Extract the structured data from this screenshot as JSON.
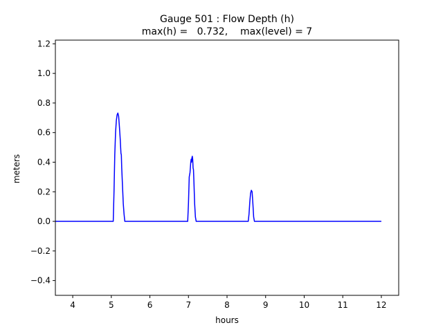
{
  "chart_data": {
    "type": "line",
    "title": "Gauge 501 : Flow Depth (h)",
    "subtitle": "max(h) =   0.732,    max(level) = 7",
    "xlabel": "hours",
    "ylabel": "meters",
    "xlim": [
      3.55,
      12.45
    ],
    "ylim": [
      -0.5,
      1.225
    ],
    "xticks": [
      4,
      5,
      6,
      7,
      8,
      9,
      10,
      11,
      12
    ],
    "yticks": [
      -0.4,
      -0.2,
      0.0,
      0.2,
      0.4,
      0.6,
      0.8,
      1.0,
      1.2
    ],
    "ytick_labels": [
      "−0.4",
      "−0.2",
      "0.0",
      "0.2",
      "0.4",
      "0.6",
      "0.8",
      "1.0",
      "1.2"
    ],
    "grid": false,
    "series": [
      {
        "color": "#0000ff",
        "x": [
          3.55,
          5.05,
          5.07,
          5.09,
          5.11,
          5.13,
          5.15,
          5.17,
          5.19,
          5.21,
          5.23,
          5.25,
          5.26,
          5.27,
          5.29,
          5.31,
          5.33,
          5.35,
          5.37,
          6.98,
          7.0,
          7.02,
          7.04,
          7.06,
          7.07,
          7.08,
          7.09,
          7.1,
          7.11,
          7.12,
          7.13,
          7.14,
          7.16,
          7.18,
          7.2,
          7.22,
          8.55,
          8.57,
          8.59,
          8.61,
          8.63,
          8.65,
          8.67,
          8.69,
          8.71,
          12.0
        ],
        "y": [
          0.0,
          0.0,
          0.2,
          0.45,
          0.6,
          0.68,
          0.72,
          0.732,
          0.71,
          0.64,
          0.56,
          0.46,
          0.45,
          0.36,
          0.24,
          0.12,
          0.05,
          0.0,
          0.0,
          0.0,
          0.12,
          0.3,
          0.33,
          0.4,
          0.42,
          0.4,
          0.43,
          0.44,
          0.42,
          0.36,
          0.35,
          0.28,
          0.12,
          0.03,
          0.0,
          0.0,
          0.0,
          0.05,
          0.13,
          0.19,
          0.21,
          0.2,
          0.12,
          0.03,
          0.0,
          0.0
        ]
      }
    ]
  }
}
